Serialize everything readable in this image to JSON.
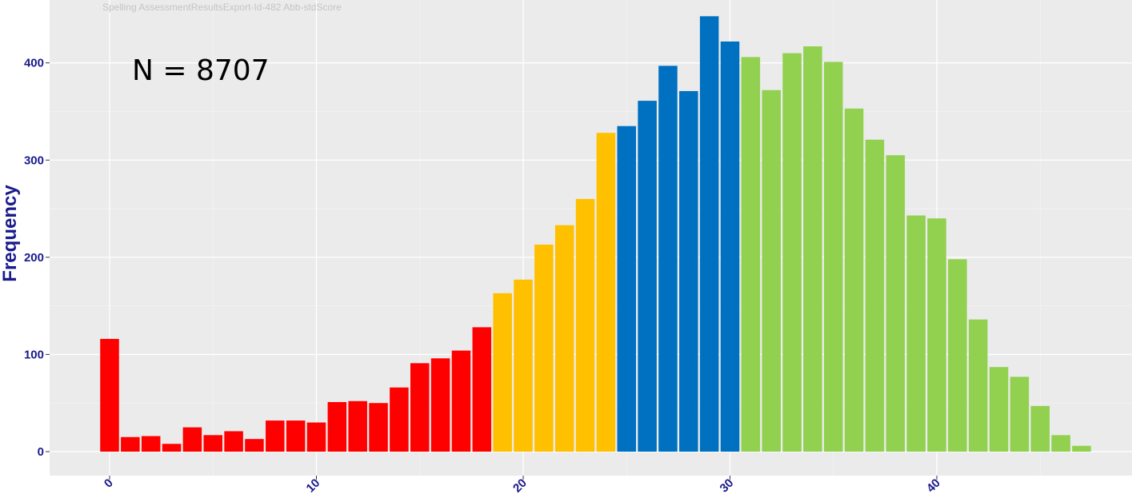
{
  "chart_data": {
    "type": "bar",
    "subtitle": "Spelling AssessmentResultsExport-Id-482 Abb-stdScore",
    "annotation": "N = 8707",
    "xlabel": "",
    "ylabel": "Frequency",
    "xlim": [
      -2.5,
      49
    ],
    "ylim": [
      -20,
      450
    ],
    "xticks": [
      "0",
      "10",
      "20",
      "30",
      "40"
    ],
    "yticks": [
      "0",
      "100",
      "200",
      "300",
      "400"
    ],
    "x": [
      0,
      1,
      2,
      3,
      4,
      5,
      6,
      7,
      8,
      9,
      10,
      11,
      12,
      13,
      14,
      15,
      16,
      17,
      18,
      19,
      20,
      21,
      22,
      23,
      24,
      25,
      26,
      27,
      28,
      29,
      30,
      31,
      32,
      33,
      34,
      35,
      36,
      37,
      38,
      39,
      40,
      41,
      42,
      43,
      44,
      45,
      46,
      47
    ],
    "values": [
      116,
      15,
      16,
      8,
      25,
      17,
      21,
      13,
      32,
      32,
      30,
      51,
      52,
      50,
      66,
      91,
      96,
      104,
      128,
      163,
      177,
      213,
      233,
      260,
      328,
      335,
      361,
      397,
      371,
      448,
      422,
      406,
      372,
      410,
      417,
      401,
      353,
      321,
      305,
      243,
      240,
      198,
      136,
      87,
      77,
      47,
      17,
      6
    ],
    "color_groups": [
      {
        "color": "#ff0000",
        "from": 0,
        "to": 18
      },
      {
        "color": "#ffc000",
        "from": 19,
        "to": 24
      },
      {
        "color": "#0070c0",
        "from": 25,
        "to": 30
      },
      {
        "color": "#92d050",
        "from": 31,
        "to": 47
      }
    ],
    "grid": true,
    "background": "#ebebeb"
  }
}
